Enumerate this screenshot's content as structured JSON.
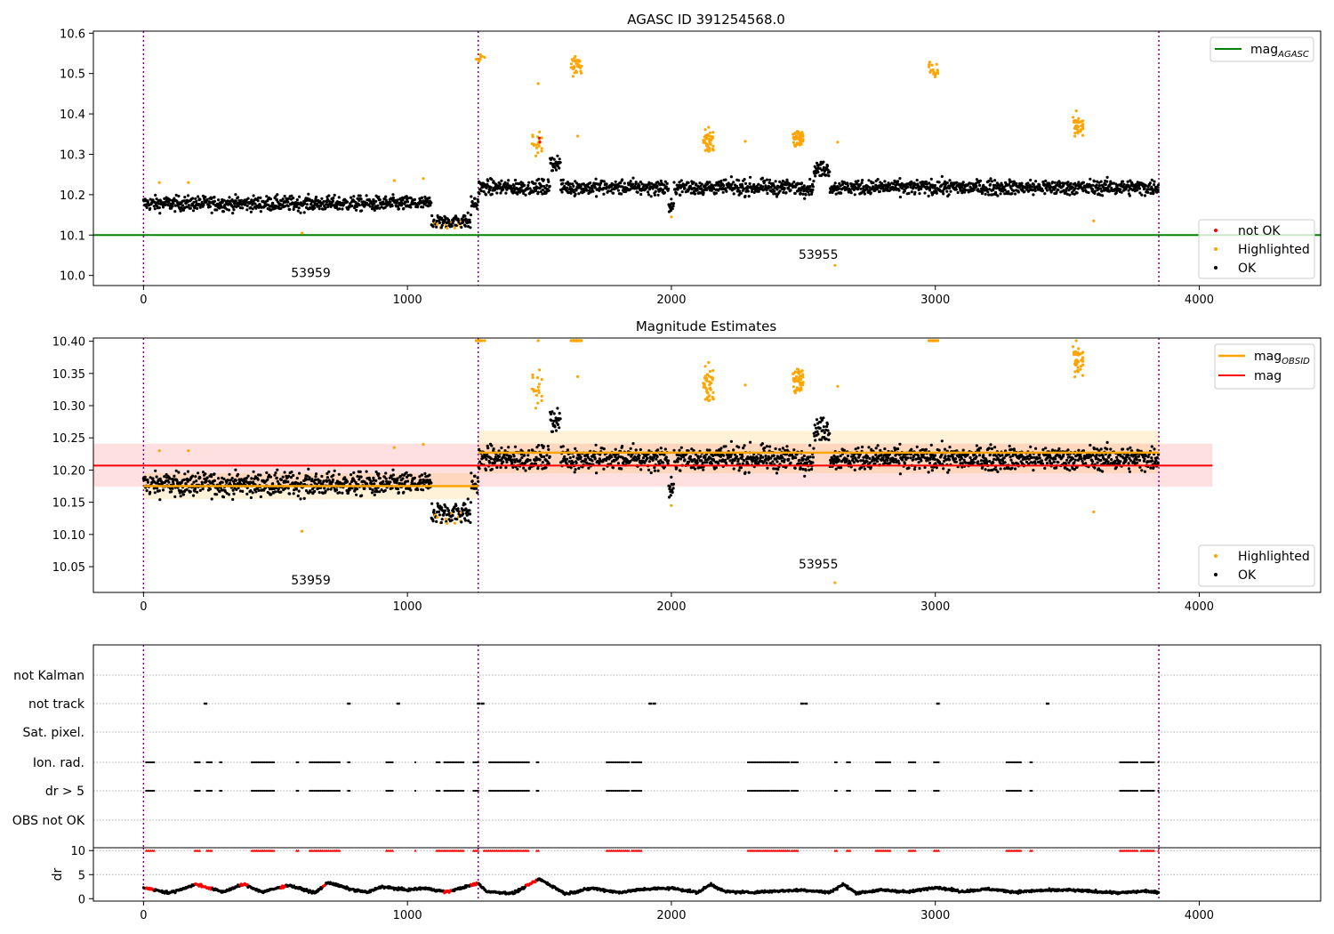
{
  "figure": {
    "background": "#ffffff"
  },
  "chart_data": [
    {
      "id": "top",
      "type": "scatter",
      "title": "AGASC ID 391254568.0",
      "xlim": [
        -190,
        4460
      ],
      "ylim": [
        9.975,
        10.605
      ],
      "xticks": [
        0,
        1000,
        2000,
        3000,
        4000
      ],
      "yticks": [
        10.0,
        10.1,
        10.2,
        10.3,
        10.4,
        10.5,
        10.6
      ],
      "ytick_labels": [
        "10.0",
        "10.1",
        "10.2",
        "10.3",
        "10.4",
        "10.5",
        "10.6"
      ],
      "vlines": [
        0,
        1268,
        3847
      ],
      "obsid_labels": [
        {
          "text": "53959",
          "x": 634,
          "y": 10.0
        },
        {
          "text": "53955",
          "x": 2557,
          "y": 10.045
        }
      ],
      "hline": {
        "name": "mag",
        "sub": "AGASC",
        "y": 10.1,
        "color": "#008000"
      },
      "legend_lines": [
        {
          "name": "mag",
          "sub": "AGASC",
          "color": "#008000"
        }
      ],
      "legend_markers": [
        {
          "name": "not OK",
          "color": "#ff0000"
        },
        {
          "name": "Highlighted",
          "color": "#ffa500"
        },
        {
          "name": "OK",
          "color": "#000000"
        }
      ]
    },
    {
      "id": "middle",
      "type": "scatter",
      "title": "Magnitude Estimates",
      "xlim": [
        -190,
        4460
      ],
      "ylim": [
        10.01,
        10.405
      ],
      "xticks": [
        0,
        1000,
        2000,
        3000,
        4000
      ],
      "yticks": [
        10.05,
        10.1,
        10.15,
        10.2,
        10.25,
        10.3,
        10.35,
        10.4
      ],
      "ytick_labels": [
        "10.05",
        "10.10",
        "10.15",
        "10.20",
        "10.25",
        "10.30",
        "10.35",
        "10.40"
      ],
      "vlines": [
        0,
        1268,
        3847
      ],
      "obsid_labels": [
        {
          "text": "53959",
          "x": 634,
          "y": 10.025
        },
        {
          "text": "53955",
          "x": 2557,
          "y": 10.05
        }
      ],
      "mag_band": {
        "x0": -190,
        "x1": 4050,
        "y": 10.207,
        "lo": 10.174,
        "hi": 10.241,
        "color": "#ff0000"
      },
      "obsid_segments": [
        {
          "x0": 0,
          "x1": 1268,
          "y": 10.175,
          "lo": 10.155,
          "hi": 10.195
        },
        {
          "x0": 1268,
          "x1": 3847,
          "y": 10.227,
          "lo": 10.195,
          "hi": 10.261
        }
      ],
      "legend_lines": [
        {
          "name": "mag",
          "sub": "OBSID",
          "color": "#ffa500"
        },
        {
          "name": "mag",
          "sub": "",
          "color": "#ff0000"
        }
      ],
      "legend_markers": [
        {
          "name": "Highlighted",
          "color": "#ffa500"
        },
        {
          "name": "OK",
          "color": "#000000"
        }
      ]
    },
    {
      "id": "flags",
      "type": "scatter",
      "xlim": [
        -190,
        4460
      ],
      "categories": [
        "not Kalman",
        "not track",
        "Sat. pixel.",
        "Ion. rad.",
        "dr > 5",
        "OBS not OK"
      ],
      "vlines": [
        0,
        1268,
        3847
      ],
      "not_track_x": [
        235,
        778,
        965,
        1270,
        1285,
        1920,
        1935,
        2495,
        2510,
        3010,
        3425
      ],
      "ion_rad_ranges": [
        [
          10,
          40
        ],
        [
          195,
          215
        ],
        [
          240,
          260
        ],
        [
          290,
          300
        ],
        [
          410,
          495
        ],
        [
          580,
          590
        ],
        [
          630,
          660
        ],
        [
          665,
          745
        ],
        [
          775,
          785
        ],
        [
          920,
          945
        ],
        [
          1030,
          1035
        ],
        [
          1110,
          1125
        ],
        [
          1140,
          1215
        ],
        [
          1250,
          1270
        ],
        [
          1310,
          1460
        ],
        [
          1490,
          1500
        ],
        [
          1755,
          1840
        ],
        [
          1850,
          1890
        ],
        [
          2290,
          2450
        ],
        [
          2455,
          2480
        ],
        [
          2620,
          2630
        ],
        [
          2665,
          2680
        ],
        [
          2775,
          2830
        ],
        [
          2900,
          2925
        ],
        [
          2995,
          3015
        ],
        [
          3270,
          3325
        ],
        [
          3360,
          3370
        ],
        [
          3700,
          3770
        ],
        [
          3780,
          3830
        ],
        [
          3845,
          3850
        ]
      ]
    },
    {
      "id": "dr",
      "type": "line",
      "ylabel": "dr",
      "xlim": [
        -190,
        4460
      ],
      "ylim": [
        -0.5,
        10.6
      ],
      "xticks": [
        0,
        1000,
        2000,
        3000,
        4000
      ],
      "yticks": [
        0,
        5,
        10
      ],
      "ytick_labels": [
        "0",
        "5",
        "10"
      ],
      "vlines": [
        0,
        1268,
        3847
      ],
      "dr_points": [
        [
          0,
          2.3
        ],
        [
          100,
          1.2
        ],
        [
          200,
          3.0
        ],
        [
          300,
          1.4
        ],
        [
          380,
          3.0
        ],
        [
          450,
          1.4
        ],
        [
          550,
          2.8
        ],
        [
          650,
          1.2
        ],
        [
          700,
          3.4
        ],
        [
          780,
          2.0
        ],
        [
          850,
          1.3
        ],
        [
          900,
          2.5
        ],
        [
          1000,
          1.8
        ],
        [
          1060,
          2.2
        ],
        [
          1150,
          1.4
        ],
        [
          1268,
          3.2
        ],
        [
          1300,
          1.5
        ],
        [
          1400,
          1.1
        ],
        [
          1500,
          4.1
        ],
        [
          1600,
          1.0
        ],
        [
          1700,
          2.2
        ],
        [
          1800,
          1.3
        ],
        [
          1900,
          2.0
        ],
        [
          2000,
          2.2
        ],
        [
          2100,
          1.3
        ],
        [
          2150,
          3.0
        ],
        [
          2200,
          1.5
        ],
        [
          2300,
          1.3
        ],
        [
          2400,
          1.6
        ],
        [
          2500,
          1.8
        ],
        [
          2600,
          1.3
        ],
        [
          2650,
          3.0
        ],
        [
          2700,
          1.2
        ],
        [
          2800,
          1.8
        ],
        [
          2900,
          1.4
        ],
        [
          3000,
          2.4
        ],
        [
          3100,
          1.5
        ],
        [
          3200,
          2.0
        ],
        [
          3300,
          1.4
        ],
        [
          3400,
          1.7
        ],
        [
          3500,
          1.8
        ],
        [
          3600,
          1.5
        ],
        [
          3700,
          1.2
        ],
        [
          3800,
          1.6
        ],
        [
          3847,
          1.2
        ]
      ],
      "dr_red_ranges": [
        [
          10,
          40
        ],
        [
          195,
          260
        ],
        [
          365,
          395
        ],
        [
          520,
          540
        ],
        [
          680,
          690
        ],
        [
          1140,
          1170
        ],
        [
          1240,
          1268
        ],
        [
          1450,
          1490
        ]
      ],
      "dr_top_ranges": [
        [
          10,
          40
        ],
        [
          195,
          215
        ],
        [
          240,
          260
        ],
        [
          410,
          495
        ],
        [
          580,
          590
        ],
        [
          630,
          660
        ],
        [
          665,
          745
        ],
        [
          920,
          945
        ],
        [
          1030,
          1035
        ],
        [
          1110,
          1215
        ],
        [
          1250,
          1270
        ],
        [
          1290,
          1460
        ],
        [
          1490,
          1500
        ],
        [
          1755,
          1840
        ],
        [
          1850,
          1890
        ],
        [
          2290,
          2450
        ],
        [
          2455,
          2480
        ],
        [
          2620,
          2630
        ],
        [
          2665,
          2680
        ],
        [
          2775,
          2830
        ],
        [
          2900,
          2925
        ],
        [
          2995,
          3015
        ],
        [
          3270,
          3325
        ],
        [
          3360,
          3370
        ],
        [
          3700,
          3770
        ],
        [
          3780,
          3830
        ],
        [
          3845,
          3850
        ]
      ]
    }
  ]
}
